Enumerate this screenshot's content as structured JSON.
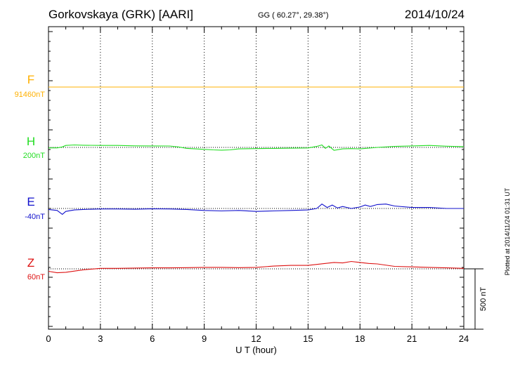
{
  "header": {
    "station": "Gorkovskaya (GRK)  [AARI]",
    "coords": "GG ( 60.27°,  29.38°)",
    "date": "2014/10/24"
  },
  "footer": {
    "plotted": "Plotted at 2014/11/24 01:31  UT"
  },
  "colors": {
    "F": "#ffb000",
    "H": "#22dd22",
    "E": "#1010cc",
    "Z": "#dd1111",
    "axis": "#000000"
  },
  "chart_data": {
    "type": "line",
    "title": "Gorkovskaya (GRK)  [AARI]",
    "xlabel": "U T (hour)",
    "xlim": [
      0,
      24
    ],
    "xticks": [
      "0",
      "3",
      "6",
      "9",
      "12",
      "15",
      "18",
      "21",
      "24"
    ],
    "scale_label": "500 nT",
    "scale_nT": 500,
    "series": [
      {
        "name": "F",
        "baseline_label": "91460nT",
        "color": "#ffb000",
        "x": [
          0,
          24
        ],
        "y": [
          0,
          0
        ]
      },
      {
        "name": "H",
        "baseline_label": "200nT",
        "color": "#22dd22",
        "x": [
          0,
          0.5,
          0.8,
          1.0,
          1.5,
          2.0,
          3.0,
          4.0,
          5.0,
          6.0,
          7.0,
          7.5,
          8.0,
          8.5,
          9.0,
          9.5,
          10.0,
          10.5,
          11.0,
          12.0,
          13.0,
          14.0,
          15.0,
          15.5,
          15.8,
          16.0,
          16.2,
          16.5,
          17.0,
          17.5,
          18.0,
          19.0,
          20.0,
          21.0,
          22.0,
          23.0,
          24.0
        ],
        "y": [
          -5,
          -5,
          5,
          20,
          25,
          22,
          20,
          20,
          16,
          15,
          14,
          5,
          -10,
          -15,
          -20,
          -25,
          -28,
          -25,
          -15,
          -12,
          -10,
          -8,
          -6,
          10,
          25,
          -10,
          15,
          -30,
          -15,
          -12,
          -15,
          0,
          10,
          15,
          20,
          12,
          8
        ]
      },
      {
        "name": "E",
        "baseline_label": "-40nT",
        "color": "#1010cc",
        "x": [
          0,
          0.5,
          0.8,
          1.0,
          1.5,
          2.0,
          3.0,
          4.0,
          5.0,
          6.0,
          7.0,
          8.0,
          9.0,
          10.0,
          11.0,
          12.0,
          13.0,
          14.0,
          15.0,
          15.5,
          15.8,
          16.1,
          16.4,
          16.7,
          17.0,
          17.5,
          18.0,
          18.3,
          18.6,
          19.0,
          19.5,
          20.0,
          21.0,
          22.0,
          23.0,
          24.0
        ],
        "y": [
          -10,
          -20,
          -60,
          -30,
          -15,
          -10,
          -5,
          -5,
          -8,
          -3,
          -5,
          -10,
          -20,
          -25,
          -20,
          -30,
          -25,
          -20,
          -15,
          0,
          45,
          10,
          35,
          5,
          20,
          0,
          15,
          35,
          20,
          40,
          45,
          25,
          10,
          10,
          0,
          0
        ]
      },
      {
        "name": "Z",
        "baseline_label": "60nT",
        "color": "#dd1111",
        "x": [
          0,
          0.5,
          1.0,
          2.0,
          3.0,
          4.0,
          5.0,
          6.0,
          7.0,
          8.0,
          9.0,
          10.0,
          11.0,
          12.0,
          13.0,
          14.0,
          15.0,
          15.5,
          16.0,
          16.5,
          17.0,
          17.5,
          18.0,
          18.5,
          19.0,
          20.0,
          21.0,
          22.0,
          23.0,
          24.0
        ],
        "y": [
          -25,
          -40,
          -35,
          -10,
          5,
          5,
          8,
          10,
          10,
          12,
          15,
          15,
          12,
          15,
          28,
          35,
          35,
          45,
          55,
          65,
          60,
          75,
          65,
          55,
          50,
          25,
          20,
          15,
          10,
          5
        ]
      }
    ]
  }
}
